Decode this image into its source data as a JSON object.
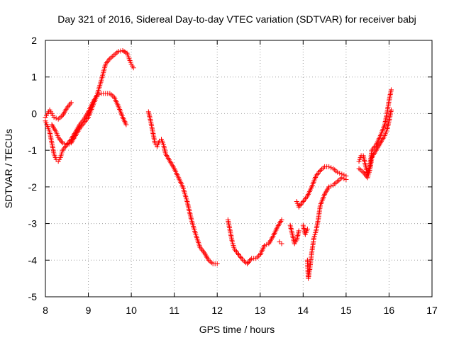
{
  "chart_data": {
    "type": "scatter",
    "title": "Day 321 of 2016, Sidereal Day-to-day VTEC variation (SDTVAR) for receiver babj",
    "xlabel": "GPS time / hours",
    "ylabel": "SDTVAR / TECUs",
    "xlim": [
      8,
      17
    ],
    "ylim": [
      -5,
      2
    ],
    "xticks": [
      "8",
      "9",
      "10",
      "11",
      "12",
      "13",
      "14",
      "15",
      "16",
      "17"
    ],
    "yticks": [
      "-5",
      "-4",
      "-3",
      "-2",
      "-1",
      "0",
      "1",
      "2"
    ],
    "grid": true,
    "marker": "+",
    "color": "#ff0000",
    "series": [
      {
        "name": "SDTVAR",
        "points": [
          [
            8.0,
            -0.1
          ],
          [
            8.05,
            0.0
          ],
          [
            8.1,
            0.1
          ],
          [
            8.15,
            0.0
          ],
          [
            8.2,
            -0.1
          ],
          [
            8.3,
            -0.15
          ],
          [
            8.4,
            -0.05
          ],
          [
            8.5,
            0.15
          ],
          [
            8.6,
            0.3
          ],
          [
            8.0,
            -0.2
          ],
          [
            8.05,
            -0.35
          ],
          [
            8.1,
            -0.5
          ],
          [
            8.15,
            -0.8
          ],
          [
            8.2,
            -1.1
          ],
          [
            8.25,
            -1.25
          ],
          [
            8.3,
            -1.3
          ],
          [
            8.35,
            -1.2
          ],
          [
            8.4,
            -1.0
          ],
          [
            8.5,
            -0.85
          ],
          [
            8.6,
            -0.7
          ],
          [
            8.7,
            -0.5
          ],
          [
            8.8,
            -0.3
          ],
          [
            8.9,
            -0.15
          ],
          [
            9.0,
            0.05
          ],
          [
            9.1,
            0.3
          ],
          [
            9.2,
            0.5
          ],
          [
            9.3,
            0.55
          ],
          [
            9.4,
            0.55
          ],
          [
            9.5,
            0.55
          ],
          [
            9.6,
            0.45
          ],
          [
            9.7,
            0.2
          ],
          [
            9.8,
            -0.1
          ],
          [
            9.88,
            -0.3
          ],
          [
            8.15,
            -0.3
          ],
          [
            8.25,
            -0.5
          ],
          [
            8.3,
            -0.65
          ],
          [
            8.4,
            -0.8
          ],
          [
            8.5,
            -0.85
          ],
          [
            8.6,
            -0.8
          ],
          [
            8.7,
            -0.6
          ],
          [
            8.8,
            -0.4
          ],
          [
            8.9,
            -0.25
          ],
          [
            9.0,
            -0.1
          ],
          [
            9.1,
            0.2
          ],
          [
            9.2,
            0.5
          ],
          [
            9.3,
            0.9
          ],
          [
            9.4,
            1.35
          ],
          [
            9.5,
            1.5
          ],
          [
            9.6,
            1.6
          ],
          [
            9.7,
            1.7
          ],
          [
            9.8,
            1.72
          ],
          [
            9.9,
            1.65
          ],
          [
            9.95,
            1.5
          ],
          [
            10.0,
            1.35
          ],
          [
            10.05,
            1.25
          ],
          [
            10.4,
            0.05
          ],
          [
            10.45,
            -0.2
          ],
          [
            10.5,
            -0.5
          ],
          [
            10.55,
            -0.8
          ],
          [
            10.6,
            -0.9
          ],
          [
            10.65,
            -0.75
          ],
          [
            10.7,
            -0.7
          ],
          [
            10.75,
            -0.85
          ],
          [
            10.8,
            -1.1
          ],
          [
            10.9,
            -1.3
          ],
          [
            11.0,
            -1.5
          ],
          [
            11.1,
            -1.75
          ],
          [
            11.2,
            -2.0
          ],
          [
            11.3,
            -2.4
          ],
          [
            11.4,
            -2.9
          ],
          [
            11.5,
            -3.3
          ],
          [
            11.6,
            -3.65
          ],
          [
            11.7,
            -3.8
          ],
          [
            11.8,
            -4.0
          ],
          [
            11.9,
            -4.1
          ],
          [
            12.0,
            -4.1
          ],
          [
            12.25,
            -2.9
          ],
          [
            12.3,
            -3.2
          ],
          [
            12.35,
            -3.5
          ],
          [
            12.4,
            -3.7
          ],
          [
            12.5,
            -3.85
          ],
          [
            12.6,
            -4.0
          ],
          [
            12.7,
            -4.1
          ],
          [
            12.8,
            -3.95
          ],
          [
            12.9,
            -3.95
          ],
          [
            13.0,
            -3.85
          ],
          [
            13.1,
            -3.6
          ],
          [
            13.2,
            -3.55
          ],
          [
            13.3,
            -3.35
          ],
          [
            13.4,
            -3.1
          ],
          [
            13.5,
            -2.9
          ],
          [
            13.45,
            -3.5
          ],
          [
            13.5,
            -3.55
          ],
          [
            13.7,
            -3.05
          ],
          [
            13.75,
            -3.3
          ],
          [
            13.8,
            -3.55
          ],
          [
            13.85,
            -3.45
          ],
          [
            13.9,
            -3.2
          ],
          [
            13.85,
            -2.4
          ],
          [
            13.9,
            -2.55
          ],
          [
            14.0,
            -2.4
          ],
          [
            14.1,
            -2.25
          ],
          [
            14.2,
            -2.0
          ],
          [
            14.3,
            -1.7
          ],
          [
            14.4,
            -1.55
          ],
          [
            14.5,
            -1.45
          ],
          [
            14.6,
            -1.45
          ],
          [
            14.7,
            -1.5
          ],
          [
            14.8,
            -1.6
          ],
          [
            14.9,
            -1.65
          ],
          [
            15.0,
            -1.7
          ],
          [
            14.0,
            -3.05
          ],
          [
            14.05,
            -3.3
          ],
          [
            14.1,
            -3.15
          ],
          [
            14.1,
            -4.0
          ],
          [
            14.12,
            -4.5
          ],
          [
            14.15,
            -4.3
          ],
          [
            14.2,
            -3.8
          ],
          [
            14.25,
            -3.4
          ],
          [
            14.3,
            -3.2
          ],
          [
            14.35,
            -2.9
          ],
          [
            14.4,
            -2.5
          ],
          [
            14.5,
            -2.2
          ],
          [
            14.6,
            -2.0
          ],
          [
            14.7,
            -1.95
          ],
          [
            14.8,
            -1.85
          ],
          [
            14.9,
            -1.75
          ],
          [
            15.0,
            -1.8
          ],
          [
            15.3,
            -1.3
          ],
          [
            15.35,
            -1.15
          ],
          [
            15.4,
            -1.15
          ],
          [
            15.45,
            -1.4
          ],
          [
            15.5,
            -1.65
          ],
          [
            15.55,
            -1.45
          ],
          [
            15.6,
            -1.0
          ],
          [
            15.7,
            -0.85
          ],
          [
            15.8,
            -0.6
          ],
          [
            15.9,
            -0.3
          ],
          [
            15.95,
            0.0
          ],
          [
            16.0,
            0.35
          ],
          [
            16.05,
            0.65
          ],
          [
            15.3,
            -1.5
          ],
          [
            15.4,
            -1.6
          ],
          [
            15.5,
            -1.75
          ],
          [
            15.55,
            -1.55
          ],
          [
            15.6,
            -1.2
          ],
          [
            15.7,
            -1.0
          ],
          [
            15.8,
            -0.8
          ],
          [
            15.9,
            -0.6
          ],
          [
            15.95,
            -0.45
          ],
          [
            16.0,
            -0.2
          ],
          [
            16.05,
            0.1
          ]
        ]
      }
    ]
  }
}
